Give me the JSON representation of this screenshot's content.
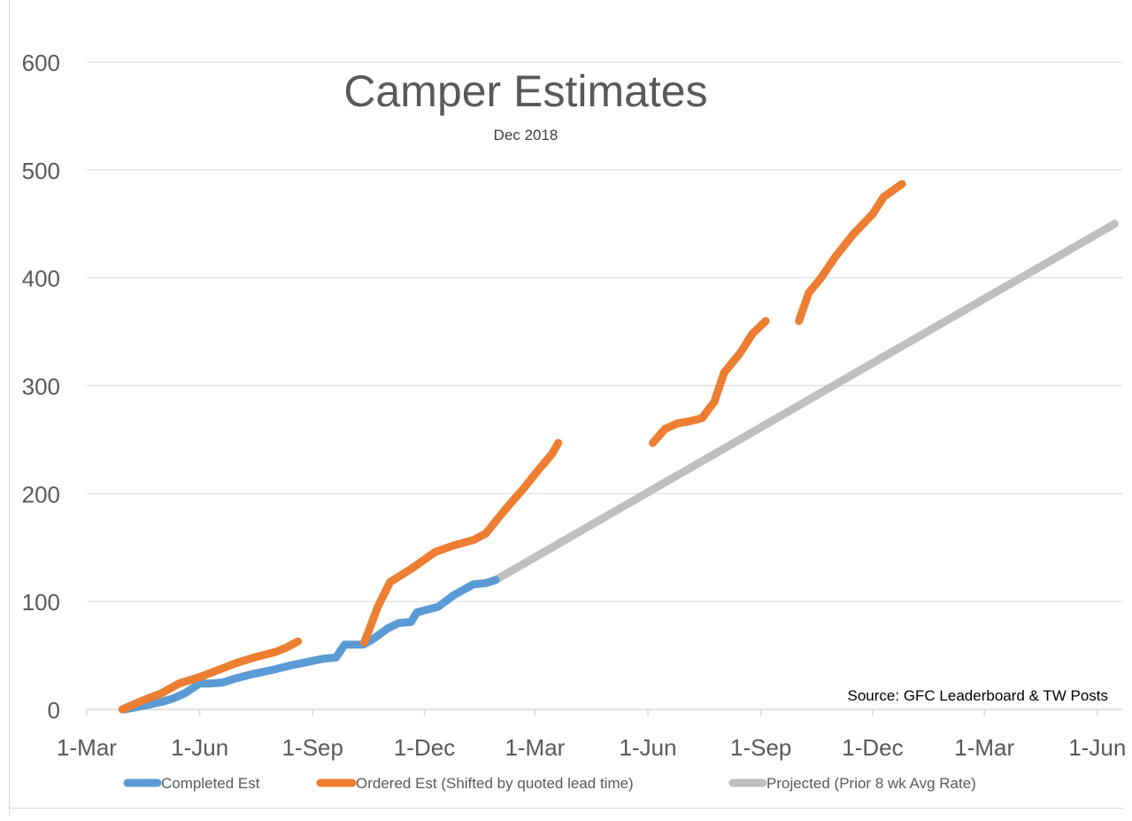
{
  "chart_data": {
    "type": "line",
    "title": "Camper Estimates",
    "subtitle": "Dec 2018",
    "xlabel": "",
    "ylabel": "",
    "source_note": "Source: GFC Leaderboard & TW Posts",
    "ylim": [
      0,
      600
    ],
    "yticks": [
      0,
      100,
      200,
      300,
      400,
      500,
      600
    ],
    "xlim": [
      "2018-03-01",
      "2020-06-01"
    ],
    "xticks": [
      {
        "date": "2018-03-01",
        "label": "1-Mar"
      },
      {
        "date": "2018-06-01",
        "label": "1-Jun"
      },
      {
        "date": "2018-09-01",
        "label": "1-Sep"
      },
      {
        "date": "2018-12-01",
        "label": "1-Dec"
      },
      {
        "date": "2019-03-01",
        "label": "1-Mar"
      },
      {
        "date": "2019-06-01",
        "label": "1-Jun"
      },
      {
        "date": "2019-09-01",
        "label": "1-Sep"
      },
      {
        "date": "2019-12-01",
        "label": "1-Dec"
      },
      {
        "date": "2020-03-01",
        "label": "1-Mar"
      },
      {
        "date": "2020-06-01",
        "label": "1-Jun"
      }
    ],
    "grid": true,
    "legend_position": "bottom",
    "series": [
      {
        "name": "Completed Est",
        "color": "#5b9bd5",
        "segments": [
          [
            [
              "2018-04-01",
              0
            ],
            [
              "2018-04-15",
              3
            ],
            [
              "2018-05-01",
              7
            ],
            [
              "2018-05-10",
              10
            ],
            [
              "2018-05-20",
              15
            ],
            [
              "2018-06-01",
              24
            ],
            [
              "2018-06-10",
              24
            ],
            [
              "2018-06-20",
              25
            ],
            [
              "2018-07-01",
              29
            ],
            [
              "2018-07-15",
              33
            ],
            [
              "2018-08-01",
              37
            ],
            [
              "2018-08-15",
              41
            ],
            [
              "2018-09-01",
              45
            ],
            [
              "2018-09-10",
              47
            ],
            [
              "2018-09-20",
              48
            ],
            [
              "2018-09-27",
              60
            ],
            [
              "2018-10-12",
              60
            ],
            [
              "2018-10-20",
              65
            ],
            [
              "2018-11-01",
              75
            ],
            [
              "2018-11-10",
              80
            ],
            [
              "2018-11-20",
              81
            ],
            [
              "2018-11-25",
              90
            ],
            [
              "2018-12-05",
              93
            ],
            [
              "2018-12-12",
              95
            ],
            [
              "2018-12-25",
              106
            ],
            [
              "2019-01-10",
              116
            ],
            [
              "2019-01-20",
              117
            ],
            [
              "2019-01-28",
              120
            ]
          ]
        ]
      },
      {
        "name": "Ordered Est (Shifted by quoted lead time)",
        "color": "#ed7d31",
        "segments": [
          [
            [
              "2018-03-30",
              0
            ],
            [
              "2018-04-15",
              8
            ],
            [
              "2018-05-01",
              15
            ],
            [
              "2018-05-15",
              24
            ],
            [
              "2018-06-01",
              30
            ],
            [
              "2018-06-15",
              36
            ],
            [
              "2018-07-01",
              43
            ],
            [
              "2018-07-15",
              48
            ],
            [
              "2018-08-01",
              53
            ],
            [
              "2018-08-10",
              57
            ],
            [
              "2018-08-20",
              63
            ]
          ],
          [
            [
              "2018-10-13",
              62
            ],
            [
              "2018-10-24",
              95
            ],
            [
              "2018-11-03",
              118
            ],
            [
              "2018-11-20",
              130
            ],
            [
              "2018-12-10",
              146
            ],
            [
              "2018-12-25",
              152
            ],
            [
              "2019-01-10",
              157
            ],
            [
              "2019-01-20",
              163
            ],
            [
              "2019-02-01",
              180
            ],
            [
              "2019-02-10",
              192
            ],
            [
              "2019-02-20",
              205
            ],
            [
              "2019-03-01",
              218
            ],
            [
              "2019-03-15",
              237
            ],
            [
              "2019-03-20",
              247
            ]
          ],
          [
            [
              "2019-06-05",
              247
            ],
            [
              "2019-06-15",
              260
            ],
            [
              "2019-06-25",
              265
            ],
            [
              "2019-07-05",
              267
            ],
            [
              "2019-07-15",
              270
            ],
            [
              "2019-07-25",
              285
            ],
            [
              "2019-08-02",
              312
            ],
            [
              "2019-08-15",
              330
            ],
            [
              "2019-08-25",
              348
            ],
            [
              "2019-09-05",
              360
            ]
          ],
          [
            [
              "2019-10-02",
              360
            ],
            [
              "2019-10-10",
              386
            ],
            [
              "2019-10-20",
              400
            ],
            [
              "2019-11-01",
              420
            ],
            [
              "2019-11-15",
              440
            ],
            [
              "2019-12-01",
              459
            ],
            [
              "2019-12-10",
              475
            ],
            [
              "2019-12-25",
              487
            ]
          ]
        ]
      },
      {
        "name": "Projected (Prior 8 wk Avg Rate)",
        "color": "#bfbfbf",
        "segments": [
          [
            [
              "2019-01-28",
              120
            ],
            [
              "2020-06-15",
              450
            ]
          ]
        ]
      }
    ]
  }
}
